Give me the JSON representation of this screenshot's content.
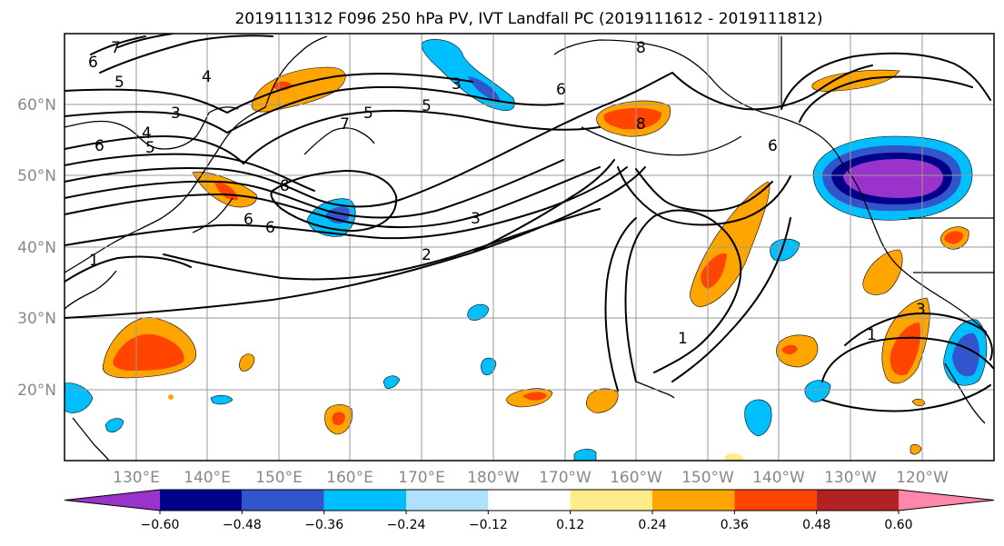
{
  "title": "2019111312 F096 250 hPa PV, IVT Landfall PC (2019111612 - 2019111812)",
  "lat_labels": [
    "60°N",
    "50°N",
    "40°N",
    "30°N",
    "20°N"
  ],
  "lon_labels": [
    "130°E",
    "140°E",
    "150°E",
    "160°E",
    "170°E",
    "180°W",
    "170°W",
    "160°W",
    "150°W",
    "140°W",
    "130°W",
    "120°W"
  ],
  "colorbar": {
    "colors": [
      "#9933cc",
      "#00008b",
      "#3355cc",
      "#00bfff",
      "#b0e0ff",
      "#ffffff",
      "#ffeb8a",
      "#ffa500",
      "#ff4500",
      "#b22222",
      "#ff88aa"
    ],
    "ticks": [
      "−0.60",
      "−0.48",
      "−0.36",
      "−0.24",
      "−0.12",
      "0.12",
      "0.24",
      "0.36",
      "0.48",
      "0.60"
    ]
  },
  "contour_labels": [
    "7",
    "6",
    "5",
    "4",
    "3",
    "6",
    "5",
    "4",
    "8",
    "6",
    "7",
    "5",
    "3",
    "3",
    "2",
    "1",
    "8",
    "6",
    "6",
    "1",
    "1",
    "8",
    "6",
    "3",
    "5"
  ]
}
